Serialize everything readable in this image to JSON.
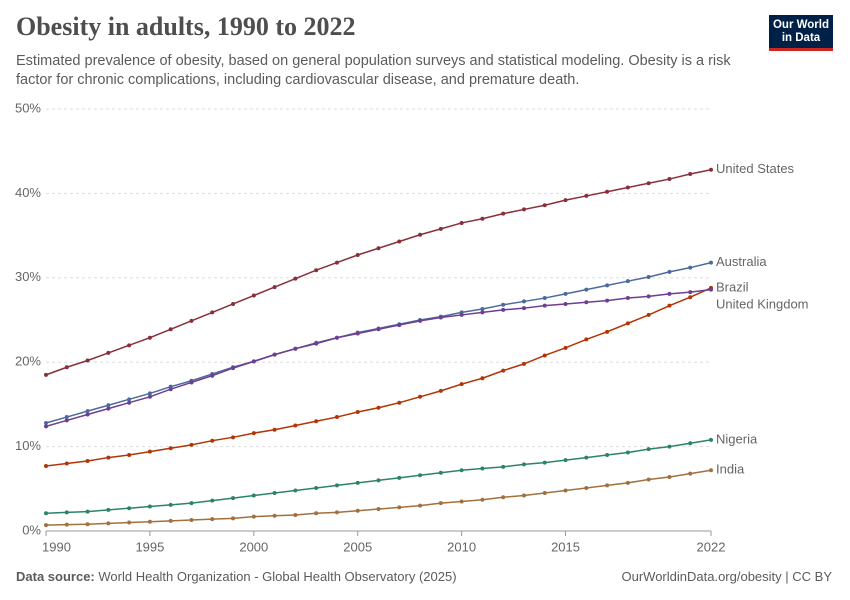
{
  "chart_data": {
    "type": "line",
    "title": "Obesity in adults, 1990 to 2022",
    "subtitle": "Estimated prevalence of obesity, based on general population surveys and statistical modeling. Obesity is a risk factor for chronic complications, including cardiovascular disease, and premature death.",
    "logo": [
      "Our World",
      "in Data"
    ],
    "source_label": "Data source:",
    "source": "World Health Organization - Global Health Observatory (2025)",
    "credit": "OurWorldinData.org/obesity | CC BY",
    "x": [
      1990,
      1991,
      1992,
      1993,
      1994,
      1995,
      1996,
      1997,
      1998,
      1999,
      2000,
      2001,
      2002,
      2003,
      2004,
      2005,
      2006,
      2007,
      2008,
      2009,
      2010,
      2011,
      2012,
      2013,
      2014,
      2015,
      2016,
      2017,
      2018,
      2019,
      2020,
      2021,
      2022
    ],
    "xlim": [
      1990,
      2022
    ],
    "xticks": [
      1990,
      1995,
      2000,
      2005,
      2010,
      2015,
      2022
    ],
    "ylim": [
      0,
      50
    ],
    "yticks": [
      {
        "value": 0,
        "label": "0%"
      },
      {
        "value": 10,
        "label": "10%"
      },
      {
        "value": 20,
        "label": "20%"
      },
      {
        "value": 30,
        "label": "30%"
      },
      {
        "value": 40,
        "label": "40%"
      },
      {
        "value": 50,
        "label": "50%"
      }
    ],
    "grid": true,
    "series": [
      {
        "name": "United States",
        "color": "#883039",
        "values": [
          18.5,
          19.4,
          20.2,
          21.1,
          22.0,
          22.9,
          23.9,
          24.9,
          25.9,
          26.9,
          27.9,
          28.9,
          29.9,
          30.9,
          31.8,
          32.7,
          33.5,
          34.3,
          35.1,
          35.8,
          36.5,
          37.0,
          37.6,
          38.1,
          38.6,
          39.2,
          39.7,
          40.2,
          40.7,
          41.2,
          41.7,
          42.3,
          42.8
        ]
      },
      {
        "name": "Australia",
        "color": "#4c6a9c",
        "values": [
          12.8,
          13.5,
          14.2,
          14.9,
          15.6,
          16.3,
          17.1,
          17.8,
          18.6,
          19.4,
          20.1,
          20.9,
          21.6,
          22.3,
          22.9,
          23.5,
          24.0,
          24.5,
          25.0,
          25.4,
          25.9,
          26.3,
          26.8,
          27.2,
          27.6,
          28.1,
          28.6,
          29.1,
          29.6,
          30.1,
          30.7,
          31.2,
          31.8
        ]
      },
      {
        "name": "Brazil",
        "color": "#b13507",
        "values": [
          7.7,
          8.0,
          8.3,
          8.7,
          9.0,
          9.4,
          9.8,
          10.2,
          10.7,
          11.1,
          11.6,
          12.0,
          12.5,
          13.0,
          13.5,
          14.1,
          14.6,
          15.2,
          15.9,
          16.6,
          17.4,
          18.1,
          19.0,
          19.8,
          20.8,
          21.7,
          22.7,
          23.6,
          24.6,
          25.6,
          26.7,
          27.7,
          28.8
        ]
      },
      {
        "name": "United Kingdom",
        "color": "#6d3e91",
        "values": [
          12.4,
          13.1,
          13.8,
          14.5,
          15.2,
          15.9,
          16.8,
          17.6,
          18.4,
          19.3,
          20.1,
          20.9,
          21.6,
          22.2,
          22.9,
          23.4,
          23.9,
          24.4,
          24.9,
          25.3,
          25.6,
          25.9,
          26.2,
          26.4,
          26.7,
          26.9,
          27.1,
          27.3,
          27.6,
          27.8,
          28.1,
          28.3,
          28.6
        ]
      },
      {
        "name": "Nigeria",
        "color": "#2c8465",
        "values": [
          2.1,
          2.2,
          2.3,
          2.5,
          2.7,
          2.9,
          3.1,
          3.3,
          3.6,
          3.9,
          4.2,
          4.5,
          4.8,
          5.1,
          5.4,
          5.7,
          6.0,
          6.3,
          6.6,
          6.9,
          7.2,
          7.4,
          7.6,
          7.9,
          8.1,
          8.4,
          8.7,
          9.0,
          9.3,
          9.7,
          10.0,
          10.4,
          10.8
        ]
      },
      {
        "name": "India",
        "color": "#a2703e",
        "values": [
          0.7,
          0.75,
          0.8,
          0.9,
          1.0,
          1.1,
          1.2,
          1.3,
          1.4,
          1.5,
          1.7,
          1.8,
          1.9,
          2.1,
          2.2,
          2.4,
          2.6,
          2.8,
          3.0,
          3.3,
          3.5,
          3.7,
          4.0,
          4.2,
          4.5,
          4.8,
          5.1,
          5.4,
          5.7,
          6.1,
          6.4,
          6.8,
          7.2
        ]
      }
    ]
  }
}
